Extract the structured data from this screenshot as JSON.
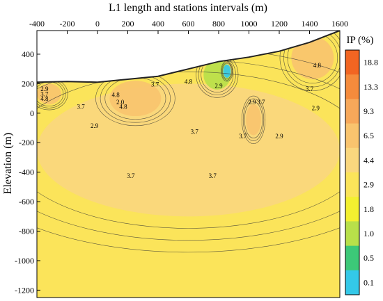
{
  "chart_data": {
    "type": "heatmap",
    "title": "L1 length and stations intervals (m)",
    "xlabel": "",
    "ylabel": "Elevation (m)",
    "xlim": [
      -400,
      1600
    ],
    "ylim": [
      -1250,
      560
    ],
    "x_ticks": [
      -400,
      -200,
      0,
      200,
      400,
      600,
      800,
      1000,
      1200,
      1400,
      1600
    ],
    "y_ticks": [
      400,
      200,
      0,
      -200,
      -400,
      -600,
      -800,
      -1000,
      -1200
    ],
    "colorbar": {
      "title": "IP (%)",
      "levels": [
        "18.8",
        "13.3",
        "9.3",
        "6.5",
        "4.4",
        "2.9",
        "1.8",
        "1.0",
        "0.5",
        "0.1"
      ],
      "colors": [
        "#f26522",
        "#f58b3c",
        "#f7a85a",
        "#f9c46e",
        "#fad77e",
        "#fbe45a",
        "#f3f030",
        "#b8e04a",
        "#3cc878",
        "#34c8e8"
      ]
    },
    "contour_labels": [
      {
        "x": -350,
        "y": 150,
        "text": "2.9"
      },
      {
        "x": -350,
        "y": 115,
        "text": "3.7"
      },
      {
        "x": -350,
        "y": 85,
        "text": "4.8"
      },
      {
        "x": 120,
        "y": 110,
        "text": "4.8"
      },
      {
        "x": 150,
        "y": 60,
        "text": "2.0"
      },
      {
        "x": 170,
        "y": 30,
        "text": "4.8"
      },
      {
        "x": 380,
        "y": 180,
        "text": "3.7"
      },
      {
        "x": 600,
        "y": 200,
        "text": "4.8"
      },
      {
        "x": 800,
        "y": 170,
        "text": "2.9"
      },
      {
        "x": 1020,
        "y": 60,
        "text": "2.9"
      },
      {
        "x": 1080,
        "y": 60,
        "text": "3.7"
      },
      {
        "x": -110,
        "y": 30,
        "text": "3.7"
      },
      {
        "x": -20,
        "y": -100,
        "text": "2.9"
      },
      {
        "x": 640,
        "y": -140,
        "text": "3.7"
      },
      {
        "x": 960,
        "y": -170,
        "text": "3.7"
      },
      {
        "x": 1200,
        "y": -170,
        "text": "2.9"
      },
      {
        "x": 1400,
        "y": 150,
        "text": "3.7"
      },
      {
        "x": 1440,
        "y": 20,
        "text": "2.9"
      },
      {
        "x": 1450,
        "y": 310,
        "text": "4.8"
      },
      {
        "x": 220,
        "y": -440,
        "text": "3.7"
      },
      {
        "x": 760,
        "y": -440,
        "text": "3.7"
      }
    ],
    "surface_profile": [
      [
        -400,
        210
      ],
      [
        -200,
        215
      ],
      [
        0,
        210
      ],
      [
        200,
        230
      ],
      [
        400,
        250
      ],
      [
        600,
        300
      ],
      [
        800,
        350
      ],
      [
        1000,
        380
      ],
      [
        1200,
        420
      ],
      [
        1400,
        480
      ],
      [
        1500,
        520
      ],
      [
        1600,
        560
      ]
    ],
    "regions": [
      {
        "value": "2.9",
        "x": [
          -400,
          1600
        ],
        "y": [
          -1250,
          560
        ]
      },
      {
        "value": "4.4",
        "x": [
          -400,
          1600
        ],
        "y": [
          -700,
          200
        ]
      },
      {
        "value": "6.5",
        "x": [
          -400,
          -240
        ],
        "y": [
          60,
          200
        ]
      },
      {
        "value": "6.5",
        "x": [
          80,
          420
        ],
        "y": [
          -20,
          220
        ]
      },
      {
        "value": "6.5",
        "x": [
          980,
          1080
        ],
        "y": [
          -150,
          60
        ]
      },
      {
        "value": "6.5",
        "x": [
          1280,
          1560
        ],
        "y": [
          230,
          520
        ]
      },
      {
        "value": "1.0",
        "x": [
          700,
          880
        ],
        "y": [
          160,
          360
        ]
      },
      {
        "value": "0.1",
        "x": [
          830,
          880
        ],
        "y": [
          240,
          330
        ]
      }
    ]
  }
}
